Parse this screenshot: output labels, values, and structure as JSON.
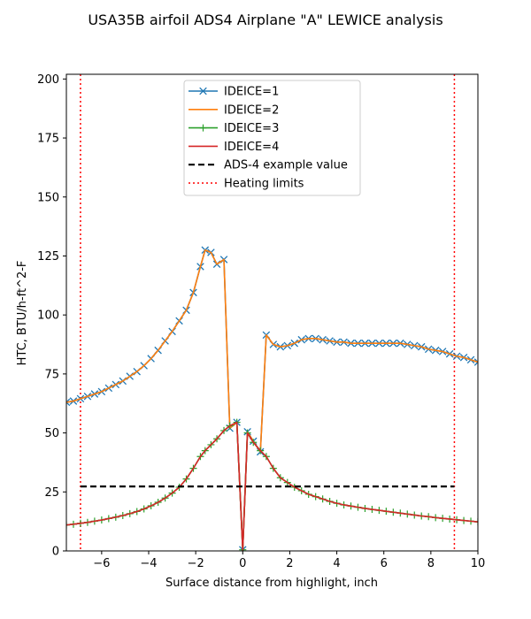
{
  "chart_data": {
    "type": "line",
    "title": "USA35B airfoil ADS4 Airplane \"A\" LEWICE analysis",
    "xlabel": "Surface distance from highlight, inch",
    "ylabel": "HTC, BTU/h-ft^2-F",
    "xlim": [
      -7.5,
      10
    ],
    "ylim": [
      0,
      202
    ],
    "xticks": [
      -6,
      -4,
      -2,
      0,
      2,
      4,
      6,
      8,
      10
    ],
    "xtick_labels": [
      "−6",
      "−4",
      "−2",
      "0",
      "2",
      "4",
      "6",
      "8",
      "10"
    ],
    "yticks": [
      0,
      25,
      50,
      75,
      100,
      125,
      150,
      175,
      200
    ],
    "ytick_labels": [
      "0",
      "25",
      "50",
      "75",
      "100",
      "125",
      "150",
      "175",
      "200"
    ],
    "grid": false,
    "legend_position": "top-center",
    "series": [
      {
        "name": "IDEICE=1",
        "color": "#1f77b4",
        "marker": "x",
        "x": [
          -7.5,
          -7.2,
          -6.9,
          -6.6,
          -6.3,
          -6.0,
          -5.7,
          -5.4,
          -5.1,
          -4.8,
          -4.5,
          -4.2,
          -3.9,
          -3.6,
          -3.3,
          -3.0,
          -2.7,
          -2.4,
          -2.1,
          -1.8,
          -1.6,
          -1.35,
          -1.1,
          -0.8,
          -0.55,
          -0.25,
          0.0,
          0.2,
          0.45,
          0.75,
          1.0,
          1.3,
          1.6,
          1.9,
          2.2,
          2.5,
          2.8,
          3.1,
          3.4,
          3.7,
          4.0,
          4.3,
          4.6,
          4.9,
          5.2,
          5.5,
          5.8,
          6.1,
          6.4,
          6.7,
          7.0,
          7.3,
          7.6,
          7.9,
          8.2,
          8.5,
          8.8,
          9.1,
          9.4,
          9.7,
          10.0
        ],
        "y": [
          63,
          63.5,
          64.5,
          65.5,
          66.5,
          67.5,
          69,
          70.5,
          72,
          74,
          76,
          78.5,
          81.5,
          85,
          89,
          93,
          97.5,
          102,
          109.5,
          120.5,
          127.5,
          126.5,
          121.5,
          123.5,
          52,
          54.5,
          0.5,
          50.5,
          46.5,
          42,
          91.5,
          87.5,
          86.5,
          87,
          88,
          89.5,
          90,
          90,
          89.5,
          89,
          88.5,
          88.5,
          88,
          88,
          88,
          88,
          88,
          88,
          88,
          88,
          87.5,
          87,
          86.5,
          85.5,
          85,
          84.5,
          83.5,
          82.5,
          82,
          81,
          80
        ]
      },
      {
        "name": "IDEICE=2",
        "color": "#ff7f0e",
        "marker": "none",
        "x": [
          -7.5,
          -7.2,
          -6.9,
          -6.6,
          -6.3,
          -6.0,
          -5.7,
          -5.4,
          -5.1,
          -4.8,
          -4.5,
          -4.2,
          -3.9,
          -3.6,
          -3.3,
          -3.0,
          -2.7,
          -2.4,
          -2.1,
          -1.8,
          -1.6,
          -1.35,
          -1.1,
          -0.8,
          -0.55,
          -0.25,
          0.0,
          0.2,
          0.45,
          0.75,
          1.0,
          1.3,
          1.6,
          1.9,
          2.2,
          2.5,
          2.8,
          3.1,
          3.4,
          3.7,
          4.0,
          4.3,
          4.6,
          4.9,
          5.2,
          5.5,
          5.8,
          6.1,
          6.4,
          6.7,
          7.0,
          7.3,
          7.6,
          7.9,
          8.2,
          8.5,
          8.8,
          9.1,
          9.4,
          9.7,
          10.0
        ],
        "y": [
          63,
          63.5,
          64.5,
          65.5,
          66.5,
          67.5,
          69,
          70.5,
          72,
          74,
          76,
          78.5,
          81.5,
          85,
          89,
          93,
          97.5,
          102,
          109.5,
          120.5,
          127.5,
          126.5,
          121.5,
          123.5,
          52,
          54.5,
          0.5,
          50.5,
          46.5,
          42,
          91.5,
          87.5,
          86.5,
          87,
          88,
          89.5,
          90,
          90,
          89.5,
          89,
          88.5,
          88.5,
          88,
          88,
          88,
          88,
          88,
          88,
          88,
          88,
          87.5,
          87,
          86.5,
          85.5,
          85,
          84.5,
          83.5,
          82.5,
          82,
          81,
          80
        ]
      },
      {
        "name": "IDEICE=3",
        "color": "#2ca02c",
        "marker": "+",
        "x": [
          -7.5,
          -7.2,
          -6.9,
          -6.6,
          -6.3,
          -6.0,
          -5.7,
          -5.4,
          -5.1,
          -4.8,
          -4.5,
          -4.2,
          -3.9,
          -3.6,
          -3.3,
          -3.0,
          -2.7,
          -2.4,
          -2.1,
          -1.8,
          -1.6,
          -1.35,
          -1.1,
          -0.8,
          -0.55,
          -0.25,
          0.0,
          0.2,
          0.45,
          0.75,
          1.0,
          1.3,
          1.6,
          1.9,
          2.2,
          2.5,
          2.8,
          3.1,
          3.4,
          3.7,
          4.0,
          4.3,
          4.6,
          4.9,
          5.2,
          5.5,
          5.8,
          6.1,
          6.4,
          6.7,
          7.0,
          7.3,
          7.6,
          7.9,
          8.2,
          8.5,
          8.8,
          9.1,
          9.4,
          9.7,
          10.0
        ],
        "y": [
          11,
          11.3,
          11.7,
          12.1,
          12.6,
          13.1,
          13.7,
          14.3,
          15,
          15.8,
          16.7,
          17.8,
          19.1,
          20.6,
          22.4,
          24.5,
          27,
          30.5,
          35,
          40,
          42.5,
          45,
          47.5,
          51,
          53,
          54.5,
          0.5,
          50,
          46,
          42.5,
          40,
          35,
          31,
          29,
          27,
          25.5,
          24,
          23,
          22,
          21,
          20.2,
          19.5,
          19,
          18.5,
          18,
          17.6,
          17.2,
          16.8,
          16.4,
          16,
          15.6,
          15.2,
          14.8,
          14.5,
          14.1,
          13.8,
          13.5,
          13.2,
          12.9,
          12.6,
          12.3
        ]
      },
      {
        "name": "IDEICE=4",
        "color": "#d62728",
        "marker": "none",
        "x": [
          -7.5,
          -7.2,
          -6.9,
          -6.6,
          -6.3,
          -6.0,
          -5.7,
          -5.4,
          -5.1,
          -4.8,
          -4.5,
          -4.2,
          -3.9,
          -3.6,
          -3.3,
          -3.0,
          -2.7,
          -2.4,
          -2.1,
          -1.8,
          -1.6,
          -1.35,
          -1.1,
          -0.8,
          -0.55,
          -0.25,
          0.0,
          0.2,
          0.45,
          0.75,
          1.0,
          1.3,
          1.6,
          1.9,
          2.2,
          2.5,
          2.8,
          3.1,
          3.4,
          3.7,
          4.0,
          4.3,
          4.6,
          4.9,
          5.2,
          5.5,
          5.8,
          6.1,
          6.4,
          6.7,
          7.0,
          7.3,
          7.6,
          7.9,
          8.2,
          8.5,
          8.8,
          9.1,
          9.4,
          9.7,
          10.0
        ],
        "y": [
          11,
          11.3,
          11.7,
          12.1,
          12.6,
          13.1,
          13.7,
          14.3,
          15,
          15.8,
          16.7,
          17.8,
          19.1,
          20.6,
          22.4,
          24.5,
          27,
          30.5,
          35,
          40,
          42.5,
          45,
          47.5,
          51,
          53,
          54.5,
          0.5,
          50,
          46,
          42.5,
          40,
          35,
          31,
          29,
          27,
          25.5,
          24,
          23,
          22,
          21,
          20.2,
          19.5,
          19,
          18.5,
          18,
          17.6,
          17.2,
          16.8,
          16.4,
          16,
          15.6,
          15.2,
          14.8,
          14.5,
          14.1,
          13.8,
          13.5,
          13.2,
          12.9,
          12.6,
          12.3
        ]
      }
    ],
    "reference_lines": [
      {
        "name": "ADS-4 example value",
        "orientation": "horizontal",
        "value": 27.3,
        "x_from": -6.9,
        "x_to": 9.0,
        "color": "#000000",
        "style": "dashed"
      }
    ],
    "limit_lines": {
      "name": "Heating limits",
      "color": "#ff0000",
      "style": "dotted",
      "values": [
        -6.9,
        9.0
      ]
    }
  }
}
